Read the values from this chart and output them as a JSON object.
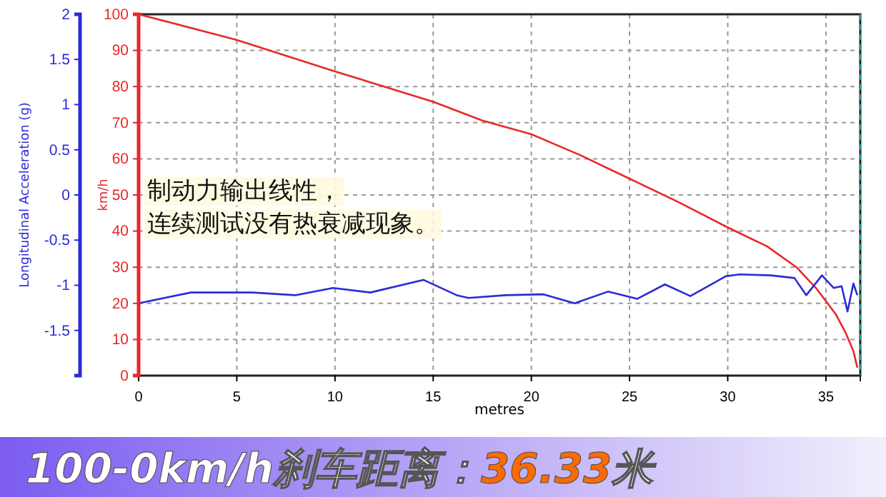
{
  "chart_data": {
    "type": "line",
    "title": "100-0km/h刹车距离：36.33米",
    "xlabel": "metres",
    "ylabel": "Longitudinal Acceleration (g)",
    "y2label": "km/h",
    "annotations": [
      "制动力输出线性，",
      "连续测试没有热衰减现象。"
    ],
    "xlim": [
      0,
      36.75
    ],
    "xticks": [
      0,
      5,
      10,
      15,
      20,
      25,
      30,
      35
    ],
    "ylim": [
      -2,
      2
    ],
    "yticks": [
      -1.5,
      -1,
      -0.5,
      0,
      0.5,
      1,
      1.5,
      2
    ],
    "y2lim": [
      0,
      100
    ],
    "y2ticks": [
      0,
      10,
      20,
      30,
      40,
      50,
      60,
      70,
      80,
      90,
      100
    ],
    "grid": true,
    "ref_lines": [
      {
        "axis": "x",
        "value": 36.75,
        "color": "#2a9d8f",
        "line_style": "dashed"
      }
    ],
    "series": [
      {
        "color": "#e8282a",
        "axis": "y2",
        "x": [
          0,
          5,
          10,
          12.5,
          15,
          17.5,
          20,
          22.5,
          25,
          27.5,
          30,
          32,
          33.5,
          34.5,
          35.5,
          36,
          36.4,
          36.6
        ],
        "values": [
          100,
          92.9,
          84.2,
          80,
          75.8,
          70.6,
          66.8,
          61,
          54.5,
          48,
          41,
          35.8,
          30,
          24.2,
          17,
          11.9,
          6.8,
          2.2
        ]
      },
      {
        "color": "#2b2bd8",
        "axis": "y",
        "x": [
          0,
          2.66,
          5.8,
          7.97,
          9.9,
          11.8,
          14.5,
          16.2,
          16.8,
          18.7,
          20.6,
          22.2,
          23.9,
          25.4,
          26.8,
          28.1,
          29.9,
          30.6,
          32.2,
          33.4,
          34.0,
          34.8,
          35.4,
          35.8,
          36.1,
          36.4,
          36.6
        ],
        "values": [
          -1.2,
          -1.08,
          -1.08,
          -1.11,
          -1.03,
          -1.08,
          -0.94,
          -1.11,
          -1.14,
          -1.11,
          -1.1,
          -1.2,
          -1.07,
          -1.15,
          -0.99,
          -1.12,
          -0.9,
          -0.88,
          -0.89,
          -0.92,
          -1.11,
          -0.89,
          -1.03,
          -1.01,
          -1.29,
          -0.98,
          -1.11
        ]
      }
    ]
  }
}
